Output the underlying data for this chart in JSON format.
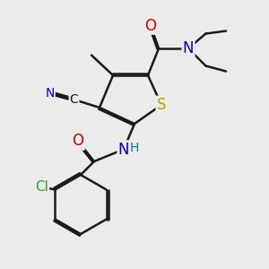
{
  "bg_color": "#ebebeb",
  "bond_color": "#1a1a1a",
  "bond_width": 1.8,
  "atoms": {
    "S": {
      "color": "#b8a000"
    },
    "N": {
      "color": "#0000cc"
    },
    "O": {
      "color": "#cc0000"
    },
    "Cl": {
      "color": "#2ca02c"
    },
    "H": {
      "color": "#008080"
    }
  }
}
